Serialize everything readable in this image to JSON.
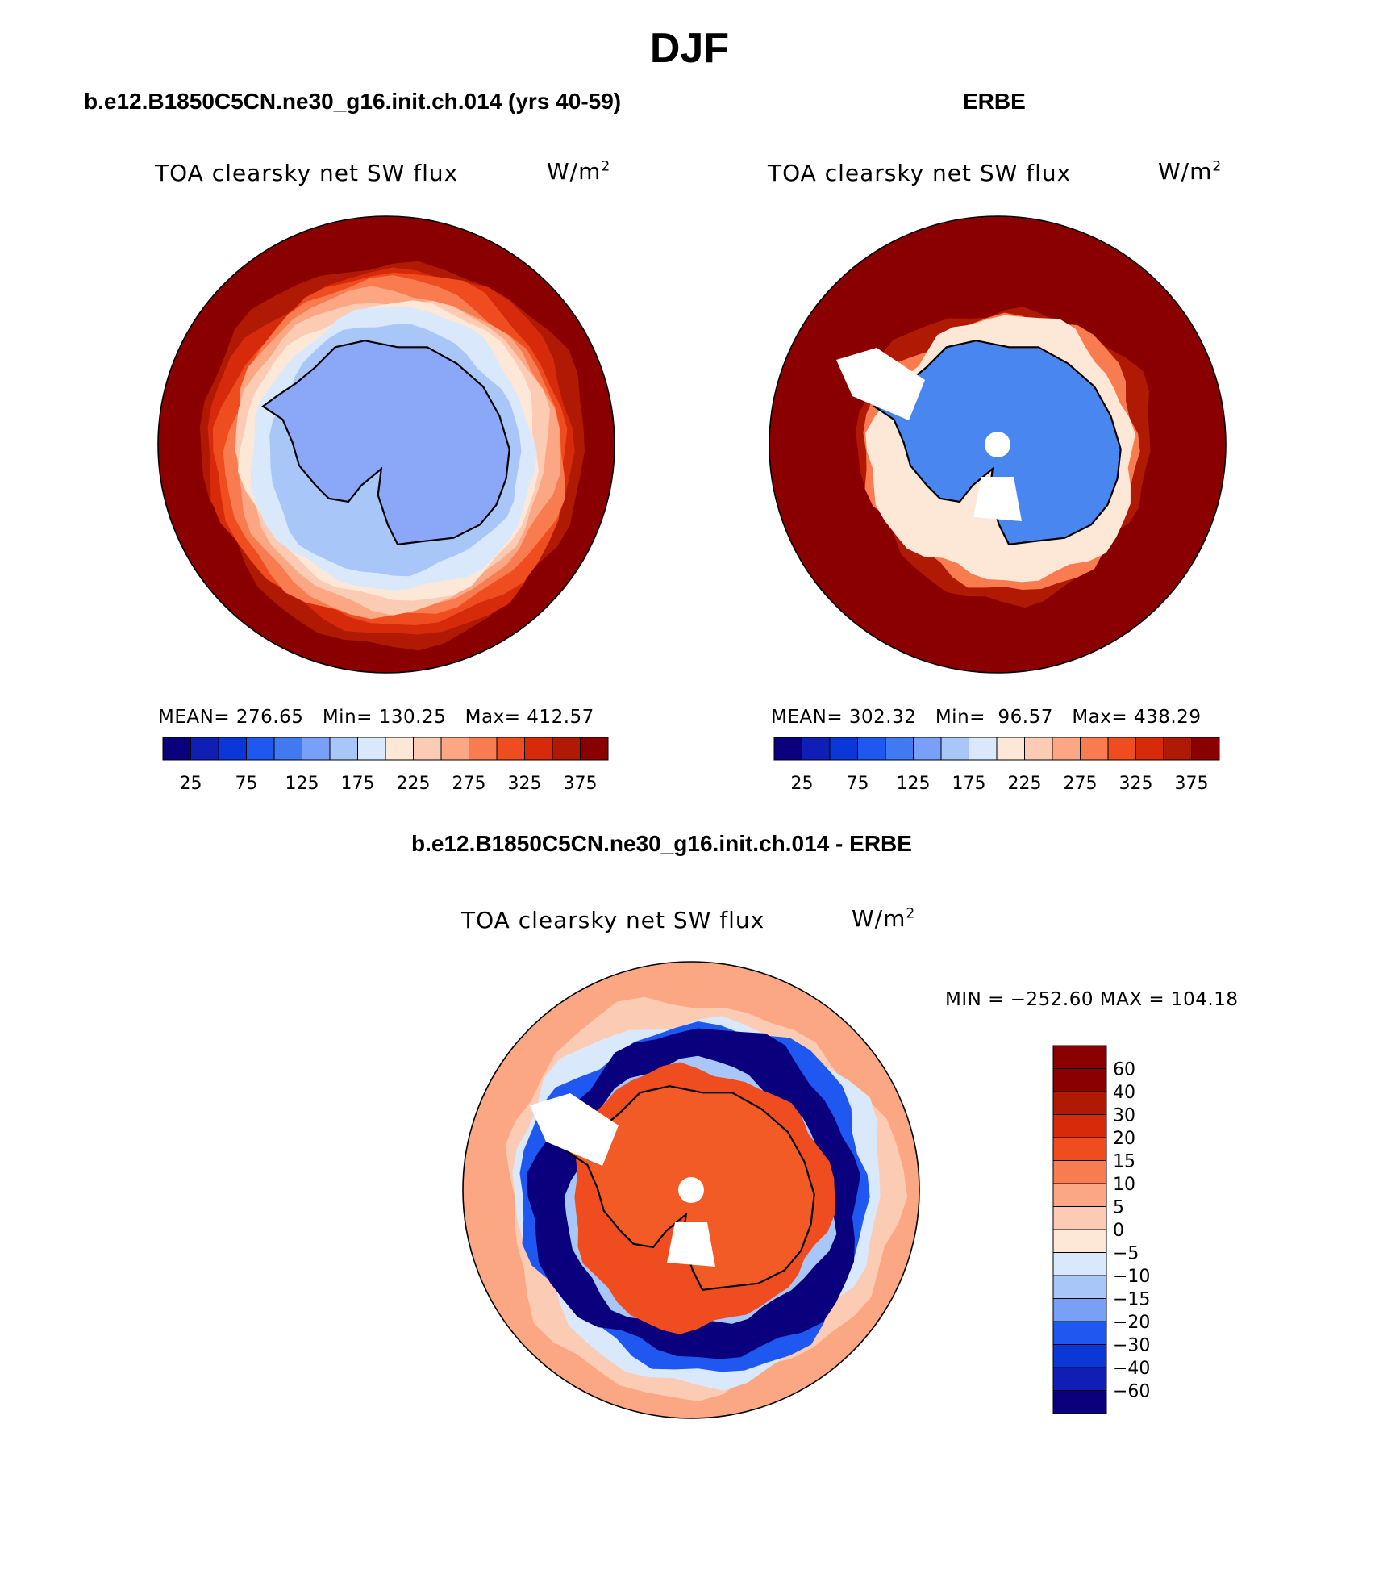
{
  "figure": {
    "title": "DJF",
    "bottom_section_title": "b.e12.B1850C5CN.ne30_g16.init.ch.014 - ERBE"
  },
  "colors": {
    "seq_palette": [
      "#0a007d",
      "#0f1fb6",
      "#0b37d9",
      "#1f58f0",
      "#4079f0",
      "#78a0f6",
      "#a9c6f8",
      "#d9e8fb",
      "#fde8d8",
      "#fccbb3",
      "#fba784",
      "#f87c4f",
      "#ef4d1f",
      "#d72a0a",
      "#b01a05",
      "#8a0000"
    ],
    "diff_palette": [
      "#0a007d",
      "#0f1fb6",
      "#0b37d9",
      "#1f58f0",
      "#78a0f6",
      "#a9c6f8",
      "#d9e8fb",
      "#fde8d8",
      "#fccbb3",
      "#fba784",
      "#f87c4f",
      "#ef4d1f",
      "#d72a0a",
      "#b01a05",
      "#8a0000"
    ],
    "land_model": "#8ba8f8",
    "land_obs": "#4a86f0",
    "land_diff": "#f25a26"
  },
  "chart_data": [
    {
      "type": "heatmap",
      "projection": "south-polar-stereographic",
      "case_title": "b.e12.B1850C5CN.ne30_g16.init.ch.014 (yrs 40-59)",
      "variable": "TOA clearsky net SW flux",
      "units_base": "W/m",
      "units_exp": "2",
      "stats": {
        "mean_label": "MEAN=",
        "mean": "276.65",
        "min_label": "Min=",
        "min": "130.25",
        "max_label": "Max=",
        "max": "412.57"
      },
      "levels": [
        25,
        50,
        75,
        100,
        125,
        150,
        175,
        200,
        225,
        250,
        275,
        300,
        325,
        350,
        375
      ],
      "tick_labels": [
        "25",
        "75",
        "125",
        "175",
        "225",
        "275",
        "325",
        "375"
      ],
      "palette_key": "seq_palette",
      "zonal_profile": [
        {
          "value": 405,
          "extent": 1.0
        },
        {
          "value": 375,
          "extent": 0.9
        },
        {
          "value": 355,
          "extent": 0.84
        },
        {
          "value": 335,
          "extent": 0.8
        },
        {
          "value": 315,
          "extent": 0.77
        },
        {
          "value": 290,
          "extent": 0.74
        },
        {
          "value": 265,
          "extent": 0.71
        },
        {
          "value": 240,
          "extent": 0.68
        },
        {
          "value": 215,
          "extent": 0.65
        },
        {
          "value": 195,
          "extent": 0.62
        },
        {
          "value": 160,
          "extent": 0.55
        }
      ],
      "land_value": 165
    },
    {
      "type": "heatmap",
      "projection": "south-polar-stereographic",
      "case_title": "ERBE",
      "variable": "TOA clearsky net SW flux",
      "units_base": "W/m",
      "units_exp": "2",
      "stats": {
        "mean_label": "MEAN=",
        "mean": "302.32",
        "min_label": "Min=",
        "min": " 96.57",
        "max_label": "Max=",
        "max": "438.29"
      },
      "levels": [
        25,
        50,
        75,
        100,
        125,
        150,
        175,
        200,
        225,
        250,
        275,
        300,
        325,
        350,
        375
      ],
      "tick_labels": [
        "25",
        "75",
        "125",
        "175",
        "225",
        "275",
        "325",
        "375"
      ],
      "palette_key": "seq_palette",
      "zonal_profile": [
        {
          "value": 420,
          "extent": 1.0
        },
        {
          "value": 380,
          "extent": 0.72
        },
        {
          "value": 360,
          "extent": 0.64
        },
        {
          "value": 290,
          "extent": 0.6
        },
        {
          "value": 215,
          "extent": 0.58
        }
      ],
      "land_value": 140
    },
    {
      "type": "heatmap",
      "projection": "south-polar-stereographic",
      "case_title": "b.e12.B1850C5CN.ne30_g16.init.ch.014 - ERBE",
      "variable": "TOA clearsky net SW flux",
      "units_base": "W/m",
      "units_exp": "2",
      "minmax_text": "MIN = −252.60 MAX = 104.18",
      "levels": [
        -60,
        -40,
        -30,
        -20,
        -15,
        -10,
        -5,
        0,
        5,
        10,
        15,
        20,
        30,
        40,
        60
      ],
      "tick_labels": [
        "60",
        "40",
        "30",
        "20",
        "15",
        "10",
        "5",
        "0",
        "−5",
        "−10",
        "−15",
        "−20",
        "−30",
        "−40",
        "−60"
      ],
      "palette_key": "diff_palette",
      "zonal_profile": [
        {
          "value": 7,
          "extent": 1.0
        },
        {
          "value": 2,
          "extent": 0.86
        },
        {
          "value": -8,
          "extent": 0.8
        },
        {
          "value": -25,
          "extent": 0.76
        },
        {
          "value": -70,
          "extent": 0.72
        },
        {
          "value": -12,
          "extent": 0.58
        },
        {
          "value": 18,
          "extent": 0.57
        }
      ],
      "land_value": 25
    }
  ]
}
